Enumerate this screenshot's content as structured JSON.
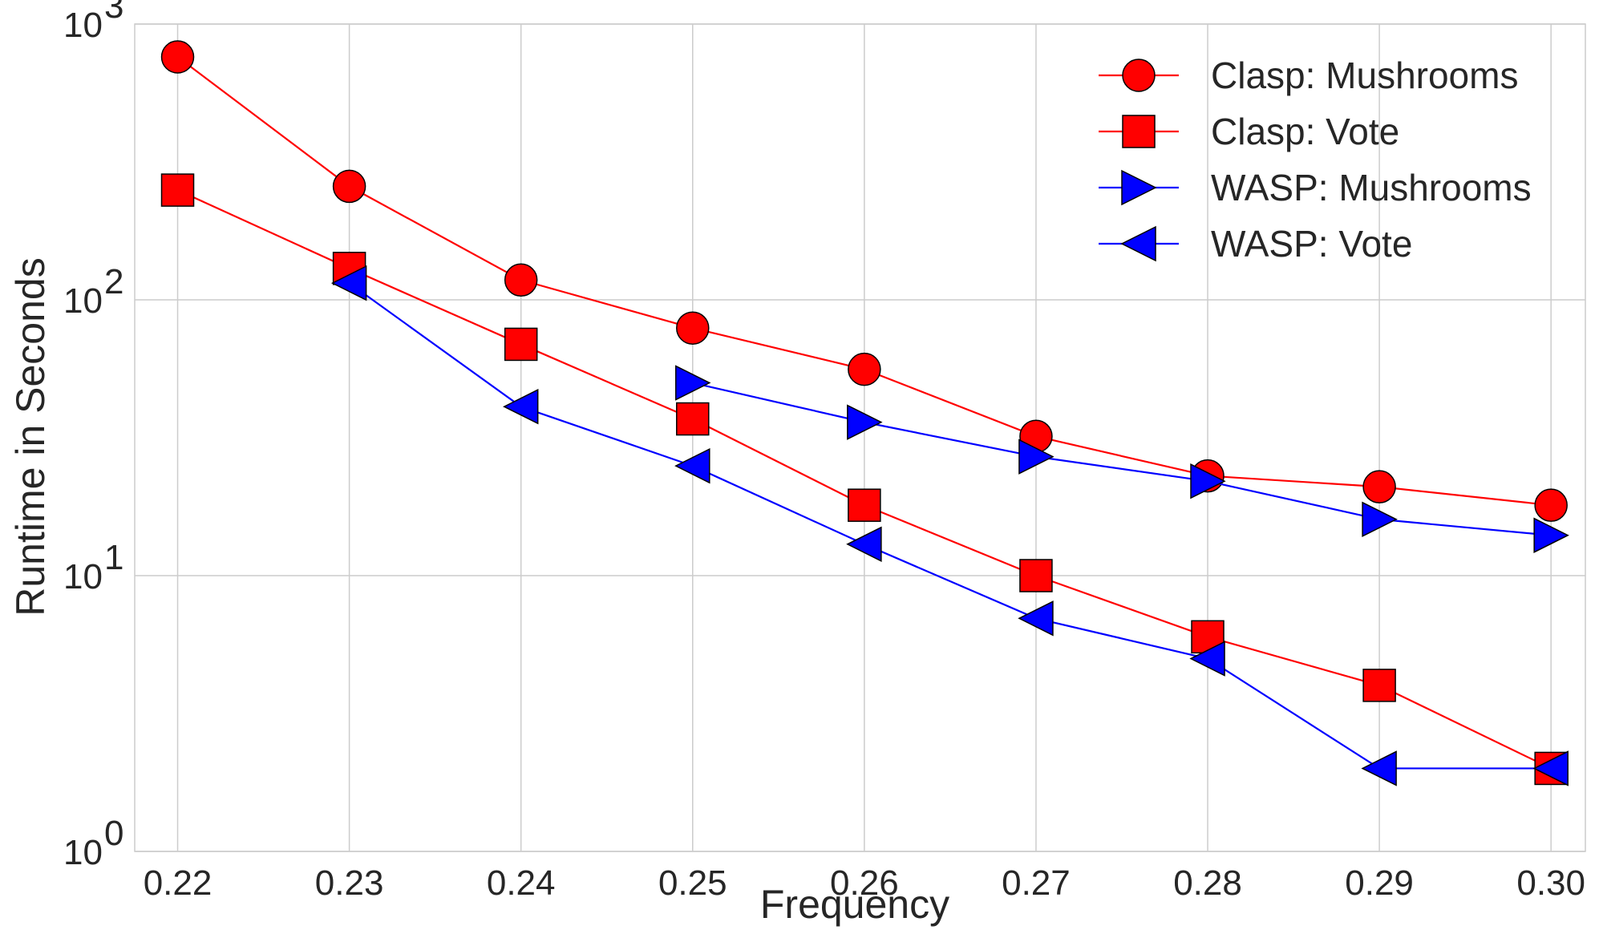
{
  "chart_data": {
    "type": "line",
    "title": "",
    "xlabel": "Frequency",
    "ylabel": "Runtime in Seconds",
    "x": [
      0.22,
      0.23,
      0.24,
      0.25,
      0.26,
      0.27,
      0.28,
      0.29,
      0.3
    ],
    "x_tick_labels": [
      "0.22",
      "0.23",
      "0.24",
      "0.25",
      "0.26",
      "0.27",
      "0.28",
      "0.29",
      "0.30"
    ],
    "xlim": [
      0.2175,
      0.302
    ],
    "y_scale": "log",
    "ylim": [
      1,
      1000
    ],
    "y_ticks": [
      {
        "value": 1,
        "base": "10",
        "exp": "0"
      },
      {
        "value": 10,
        "base": "10",
        "exp": "1"
      },
      {
        "value": 100,
        "base": "10",
        "exp": "2"
      },
      {
        "value": 1000,
        "base": "10",
        "exp": "3"
      }
    ],
    "grid": true,
    "legend_position": "top-right",
    "series": [
      {
        "name": "Clasp: Mushrooms",
        "color": "#ff0000",
        "marker": "circle",
        "x": [
          0.22,
          0.23,
          0.24,
          0.25,
          0.26,
          0.27,
          0.28,
          0.29,
          0.3
        ],
        "values": [
          760,
          258,
          118,
          79,
          56,
          32,
          23,
          21,
          18
        ]
      },
      {
        "name": "Clasp: Vote",
        "color": "#ff0000",
        "marker": "square",
        "x": [
          0.22,
          0.23,
          0.24,
          0.25,
          0.26,
          0.27,
          0.28,
          0.29,
          0.3
        ],
        "values": [
          250,
          130,
          69,
          37,
          18,
          10,
          6,
          4,
          2
        ]
      },
      {
        "name": "WASP: Mushrooms",
        "color": "#0000ff",
        "marker": "triangle-right",
        "x": [
          0.25,
          0.26,
          0.27,
          0.28,
          0.29,
          0.3
        ],
        "values": [
          50,
          36,
          27,
          22,
          16,
          14
        ]
      },
      {
        "name": "WASP: Vote",
        "color": "#0000ff",
        "marker": "triangle-left",
        "x": [
          0.23,
          0.24,
          0.25,
          0.26,
          0.27,
          0.28,
          0.29,
          0.3
        ],
        "values": [
          115,
          41,
          25,
          13,
          7,
          5,
          2,
          2
        ]
      }
    ]
  }
}
